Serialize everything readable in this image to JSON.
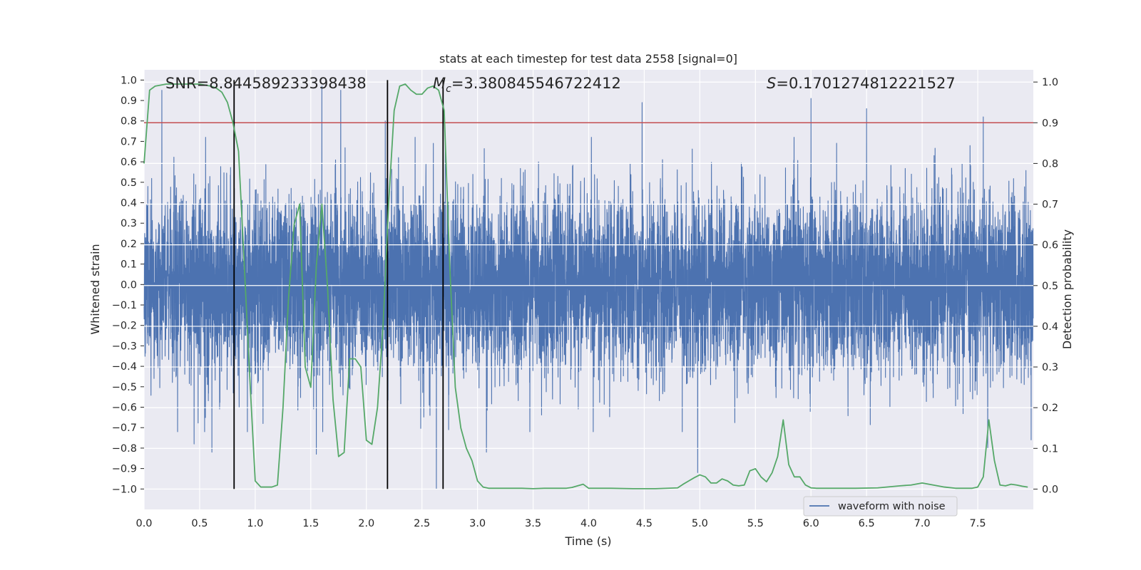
{
  "chart_data": {
    "type": "line",
    "title": "stats at each timestep for test data 2558 [signal=0]",
    "xlabel": "Time (s)",
    "ylabel_left": "Whitened strain",
    "ylabel_right": "Detection probability",
    "xlim": [
      0,
      8
    ],
    "ylim_left": [
      -1.1,
      1.05
    ],
    "ylim_right": [
      -0.05,
      1.03
    ],
    "x_ticks": [
      "0.0",
      "0.5",
      "1.0",
      "1.5",
      "2.0",
      "2.5",
      "3.0",
      "3.5",
      "4.0",
      "4.5",
      "5.0",
      "5.5",
      "6.0",
      "6.5",
      "7.0",
      "7.5"
    ],
    "x_tick_values": [
      0,
      0.5,
      1,
      1.5,
      2,
      2.5,
      3,
      3.5,
      4,
      4.5,
      5,
      5.5,
      6,
      6.5,
      7,
      7.5
    ],
    "y_left_ticks": [
      "1.0",
      "0.9",
      "0.8",
      "0.7",
      "0.6",
      "0.5",
      "0.4",
      "0.3",
      "0.2",
      "0.1",
      "0.0",
      "−0.1",
      "−0.2",
      "−0.3",
      "−0.4",
      "−0.5",
      "−0.6",
      "−0.7",
      "−0.8",
      "−0.9",
      "−1.0"
    ],
    "y_left_tick_values": [
      1.0,
      0.9,
      0.8,
      0.7,
      0.6,
      0.5,
      0.4,
      0.3,
      0.2,
      0.1,
      0.0,
      -0.1,
      -0.2,
      -0.3,
      -0.4,
      -0.5,
      -0.6,
      -0.7,
      -0.8,
      -0.9,
      -1.0
    ],
    "y_right_ticks": [
      "1.0",
      "0.9",
      "0.8",
      "0.7",
      "0.6",
      "0.5",
      "0.4",
      "0.3",
      "0.2",
      "0.1",
      "0.0"
    ],
    "y_right_tick_values": [
      1.0,
      0.9,
      0.8,
      0.7,
      0.6,
      0.5,
      0.4,
      0.3,
      0.2,
      0.1,
      0.0
    ],
    "grid": true,
    "annotations": {
      "snr": "SNR=8.844589233398438",
      "mc_symbol": "M",
      "mc_sub": "c",
      "mc_value": "=3.380845546722412",
      "s_symbol": "S",
      "s_value": "=0.1701274812221527"
    },
    "threshold_line": {
      "value": 0.9,
      "axis": "right",
      "color": "#c44e52"
    },
    "vertical_lines": [
      0.81,
      2.19,
      2.69
    ],
    "vertical_line_range": [
      -1.0,
      1.0
    ],
    "legend": {
      "label": "waveform with noise",
      "position": "lower-right"
    },
    "series": [
      {
        "name": "waveform with noise",
        "axis": "left",
        "color": "#4c72b0",
        "kind": "noise-band",
        "samples_per_second": 1024,
        "typical_amplitude": 0.38,
        "peaks": [
          {
            "x": 0.16,
            "y": 0.95
          },
          {
            "x": 0.45,
            "y": -0.78
          },
          {
            "x": 0.61,
            "y": -0.82
          },
          {
            "x": 1.07,
            "y": -0.68
          },
          {
            "x": 1.55,
            "y": -0.83
          },
          {
            "x": 1.6,
            "y": 0.97
          },
          {
            "x": 1.77,
            "y": 0.95
          },
          {
            "x": 2.17,
            "y": 0.8
          },
          {
            "x": 2.63,
            "y": -1.0
          },
          {
            "x": 3.08,
            "y": -0.82
          },
          {
            "x": 4.48,
            "y": 0.89
          },
          {
            "x": 4.98,
            "y": -0.92
          },
          {
            "x": 6.0,
            "y": 0.91
          },
          {
            "x": 6.5,
            "y": 0.86
          },
          {
            "x": 7.55,
            "y": 0.82
          },
          {
            "x": 7.59,
            "y": -0.8
          },
          {
            "x": 7.98,
            "y": -0.76
          }
        ]
      },
      {
        "name": "Detection probability",
        "axis": "right",
        "color": "#55a868",
        "kind": "line",
        "x": [
          0,
          0.05,
          0.1,
          0.2,
          0.3,
          0.4,
          0.5,
          0.6,
          0.65,
          0.7,
          0.75,
          0.8,
          0.85,
          0.9,
          0.95,
          1.0,
          1.05,
          1.1,
          1.15,
          1.2,
          1.25,
          1.3,
          1.35,
          1.4,
          1.45,
          1.5,
          1.55,
          1.6,
          1.65,
          1.7,
          1.75,
          1.8,
          1.85,
          1.9,
          1.95,
          2.0,
          2.05,
          2.1,
          2.15,
          2.2,
          2.25,
          2.3,
          2.35,
          2.4,
          2.45,
          2.5,
          2.55,
          2.6,
          2.65,
          2.7,
          2.75,
          2.8,
          2.85,
          2.9,
          2.95,
          3.0,
          3.05,
          3.1,
          3.2,
          3.4,
          3.5,
          3.6,
          3.7,
          3.8,
          3.85,
          3.9,
          3.95,
          4.0,
          4.2,
          4.4,
          4.6,
          4.8,
          4.85,
          4.9,
          4.95,
          5.0,
          5.05,
          5.1,
          5.15,
          5.2,
          5.25,
          5.3,
          5.35,
          5.4,
          5.45,
          5.5,
          5.55,
          5.6,
          5.65,
          5.7,
          5.75,
          5.8,
          5.85,
          5.9,
          5.95,
          6.0,
          6.05,
          6.1,
          6.2,
          6.4,
          6.6,
          6.8,
          6.9,
          7.0,
          7.2,
          7.3,
          7.4,
          7.45,
          7.5,
          7.55,
          7.6,
          7.65,
          7.7,
          7.75,
          7.8,
          7.85,
          7.9,
          7.95
        ],
        "y": [
          0.8,
          0.98,
          0.99,
          0.995,
          0.995,
          0.995,
          0.995,
          0.99,
          0.985,
          0.975,
          0.95,
          0.9,
          0.83,
          0.56,
          0.28,
          0.02,
          0.005,
          0.005,
          0.005,
          0.01,
          0.2,
          0.47,
          0.65,
          0.7,
          0.3,
          0.25,
          0.55,
          0.7,
          0.5,
          0.22,
          0.08,
          0.09,
          0.32,
          0.32,
          0.3,
          0.12,
          0.11,
          0.2,
          0.4,
          0.7,
          0.93,
          0.99,
          0.995,
          0.98,
          0.97,
          0.97,
          0.985,
          0.99,
          0.98,
          0.93,
          0.55,
          0.25,
          0.15,
          0.1,
          0.07,
          0.02,
          0.005,
          0.002,
          0.002,
          0.002,
          0.001,
          0.002,
          0.002,
          0.002,
          0.004,
          0.008,
          0.012,
          0.002,
          0.002,
          0.001,
          0.001,
          0.003,
          0.012,
          0.02,
          0.028,
          0.035,
          0.03,
          0.015,
          0.015,
          0.025,
          0.02,
          0.01,
          0.008,
          0.01,
          0.045,
          0.05,
          0.03,
          0.018,
          0.04,
          0.08,
          0.17,
          0.06,
          0.03,
          0.03,
          0.01,
          0.003,
          0.002,
          0.002,
          0.002,
          0.002,
          0.003,
          0.008,
          0.01,
          0.015,
          0.005,
          0.002,
          0.002,
          0.002,
          0.005,
          0.03,
          0.17,
          0.07,
          0.01,
          0.008,
          0.012,
          0.01,
          0.007,
          0.005
        ]
      }
    ]
  }
}
